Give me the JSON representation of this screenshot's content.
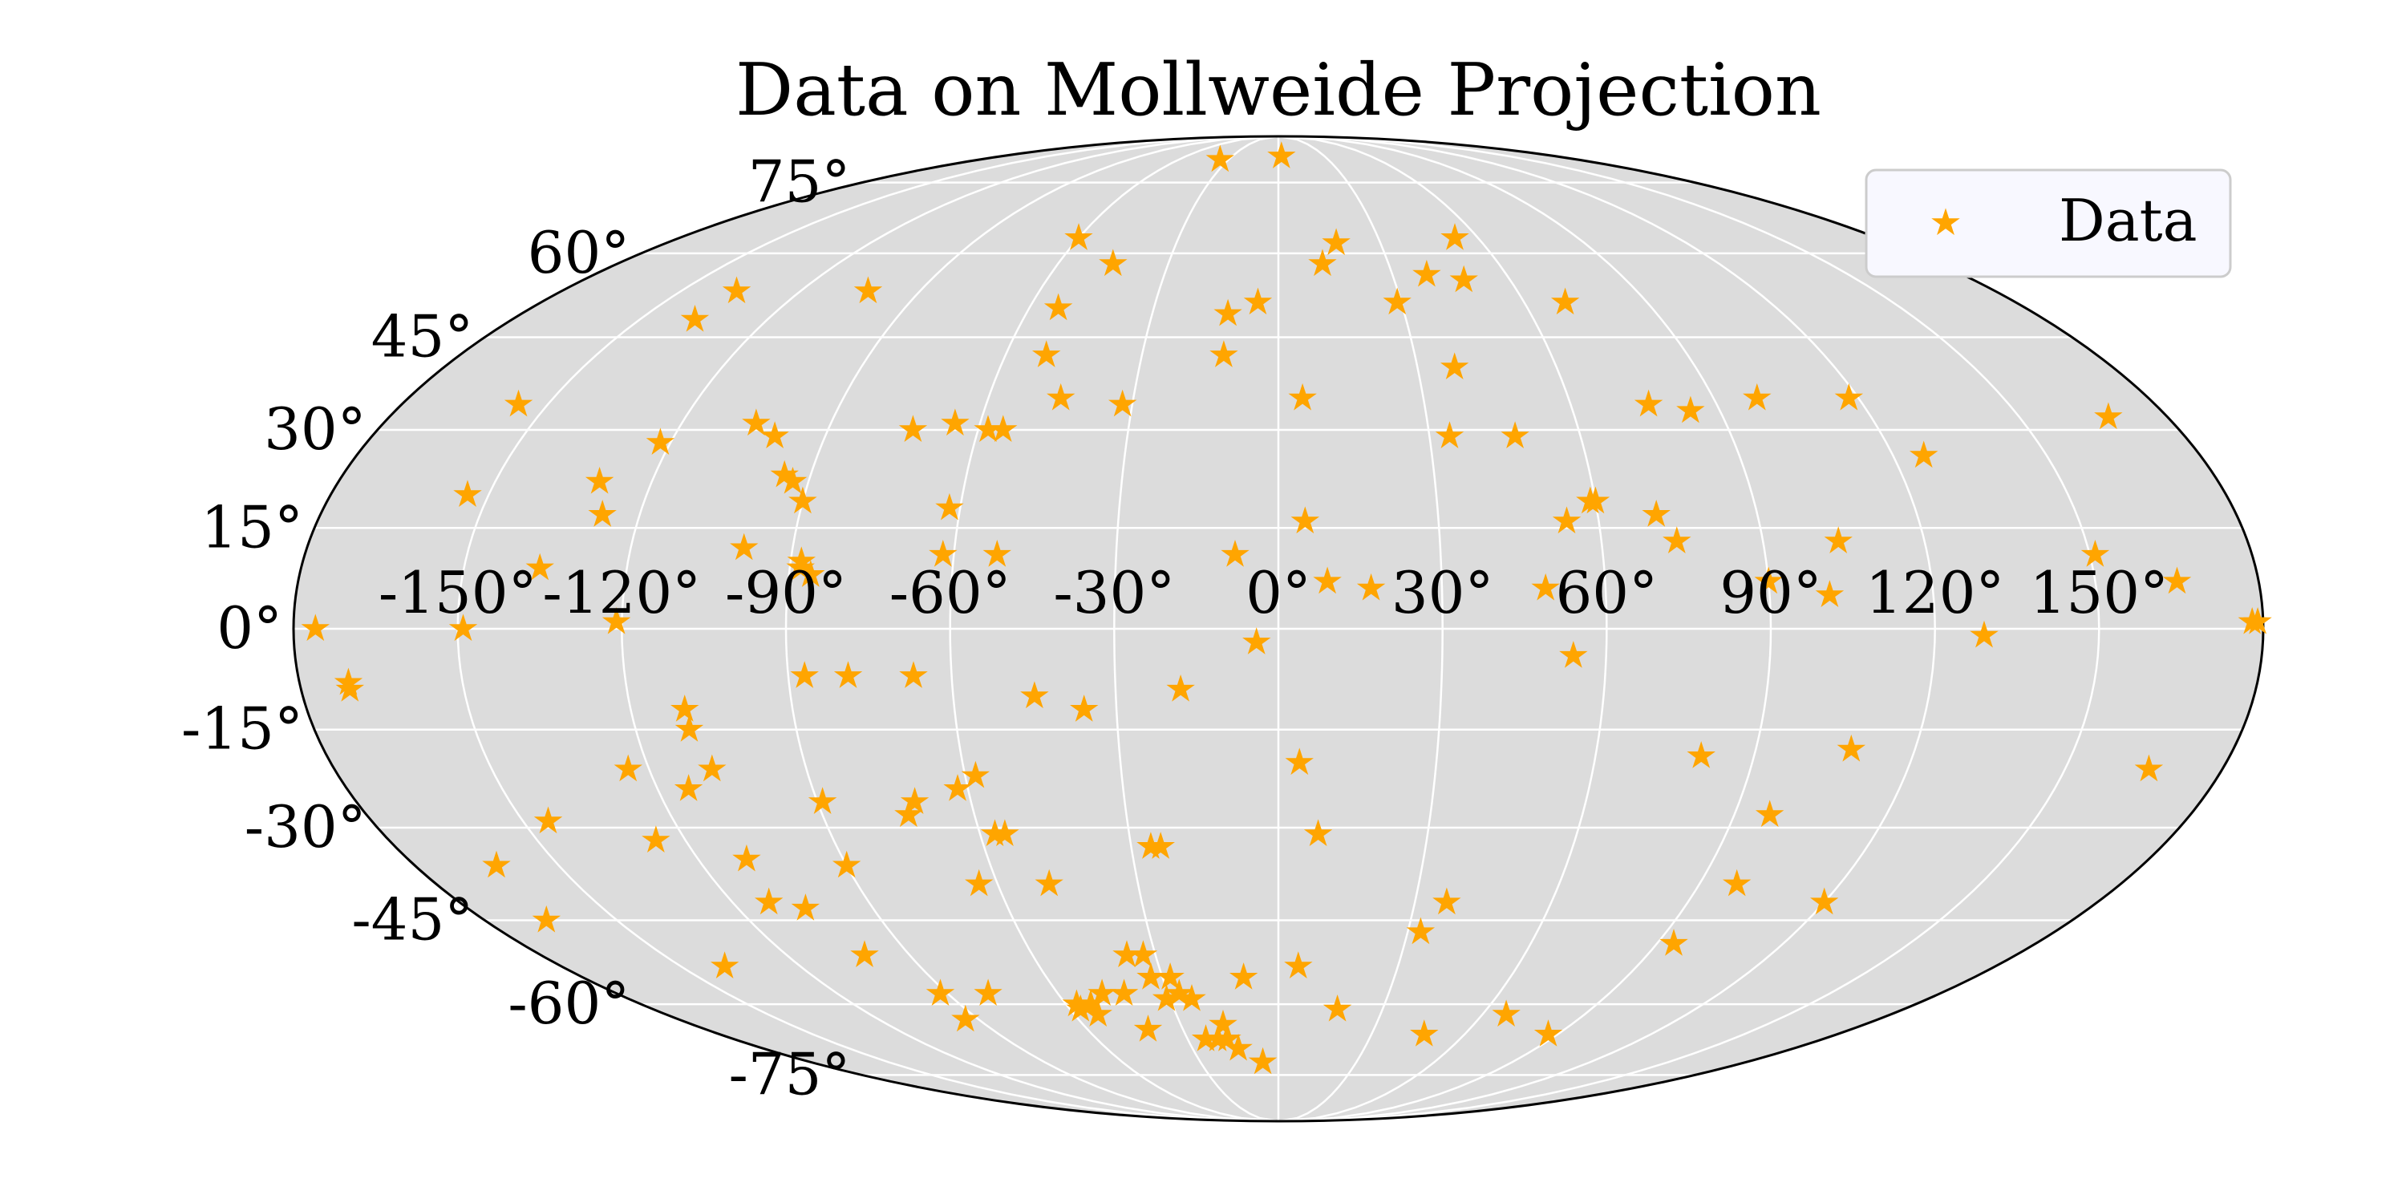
{
  "chart_data": {
    "type": "scatter",
    "projection": "mollweide",
    "title": "Data on Mollweide Projection",
    "grid": true,
    "background_color": "#dcdcdc",
    "grid_color": "#ffffff",
    "marker": "star",
    "legend_placement": "top-right",
    "lon_ticks": [
      -150,
      -120,
      -90,
      -60,
      -30,
      0,
      30,
      60,
      90,
      120,
      150
    ],
    "lon_tick_labels": [
      "-150°",
      "-120°",
      "-90°",
      "-60°",
      "-30°",
      "0°",
      "30°",
      "60°",
      "90°",
      "120°",
      "150°"
    ],
    "lat_ticks": [
      -75,
      -60,
      -45,
      -30,
      -15,
      0,
      15,
      30,
      45,
      60,
      75
    ],
    "lat_tick_labels": [
      "-75°",
      "-60°",
      "-45°",
      "-30°",
      "-15°",
      "0°",
      "15°",
      "30°",
      "45°",
      "60°",
      "75°"
    ],
    "series": [
      {
        "name": "Data",
        "color": "#ffa500",
        "points": [
          [
            -35,
            81
          ],
          [
            2,
            82
          ],
          [
            -60,
            63
          ],
          [
            17,
            62
          ],
          [
            -45,
            58
          ],
          [
            12,
            58
          ],
          [
            -136,
            53
          ],
          [
            -103,
            53
          ],
          [
            39,
            56
          ],
          [
            53,
            63
          ],
          [
            48,
            55
          ],
          [
            29,
            51
          ],
          [
            70,
            51
          ],
          [
            -137,
            48
          ],
          [
            -53,
            50
          ],
          [
            -12,
            49
          ],
          [
            -5,
            51
          ],
          [
            -51,
            42
          ],
          [
            -12,
            42
          ],
          [
            38,
            40
          ],
          [
            -45,
            35
          ],
          [
            5,
            35
          ],
          [
            -156,
            34
          ],
          [
            -73,
            30
          ],
          [
            -105,
            31
          ],
          [
            -65,
            31
          ],
          [
            -100,
            29
          ],
          [
            -122,
            28
          ],
          [
            -58,
            30
          ],
          [
            -55,
            30
          ],
          [
            -32,
            34
          ],
          [
            99,
            35
          ],
          [
            76,
            34
          ],
          [
            118,
            35
          ],
          [
            84,
            33
          ],
          [
            168,
            32
          ],
          [
            34,
            29
          ],
          [
            47,
            29
          ],
          [
            126,
            26
          ],
          [
            -130,
            22
          ],
          [
            -95,
            23
          ],
          [
            -93,
            22
          ],
          [
            -90,
            19
          ],
          [
            -154,
            20
          ],
          [
            -62,
            18
          ],
          [
            -127,
            17
          ],
          [
            5,
            16
          ],
          [
            54,
            16
          ],
          [
            59,
            19
          ],
          [
            60,
            19
          ],
          [
            71,
            17
          ],
          [
            -99,
            12
          ],
          [
            -88,
            10
          ],
          [
            -62,
            11
          ],
          [
            -88,
            9
          ],
          [
            -86,
            8
          ],
          [
            -52,
            11
          ],
          [
            -8,
            11
          ],
          [
            74,
            13
          ],
          [
            104,
            13
          ],
          [
            151,
            11
          ],
          [
            -136,
            9
          ],
          [
            9,
            7
          ],
          [
            17,
            6
          ],
          [
            49,
            6
          ],
          [
            90,
            7
          ],
          [
            101,
            5
          ],
          [
            165,
            7
          ],
          [
            -149,
            0
          ],
          [
            -121,
            1
          ],
          [
            -176,
            0
          ],
          [
            -4,
            -2
          ],
          [
            129,
            -1
          ],
          [
            178,
            1
          ],
          [
            179,
            1
          ],
          [
            54,
            -4
          ],
          [
            -171,
            -8
          ],
          [
            -171,
            -9
          ],
          [
            -87,
            -7
          ],
          [
            -79,
            -7
          ],
          [
            -67,
            -7
          ],
          [
            -45,
            -10
          ],
          [
            -36,
            -12
          ],
          [
            -18,
            -9
          ],
          [
            -110,
            -12
          ],
          [
            -110,
            -15
          ],
          [
            -124,
            -21
          ],
          [
            -108,
            -21
          ],
          [
            -114,
            -24
          ],
          [
            80,
            -19
          ],
          [
            108,
            -18
          ],
          [
            166,
            -21
          ],
          [
            -89,
            -26
          ],
          [
            -71,
            -26
          ],
          [
            -73,
            -28
          ],
          [
            -62,
            -24
          ],
          [
            -58,
            -22
          ],
          [
            -57,
            -31
          ],
          [
            -55,
            -31
          ],
          [
            -26,
            -33
          ],
          [
            -24,
            -33
          ],
          [
            4,
            -20
          ],
          [
            8,
            -31
          ],
          [
            -145,
            -29
          ],
          [
            -126,
            -32
          ],
          [
            -110,
            -35
          ],
          [
            -90,
            -36
          ],
          [
            -64,
            -39
          ],
          [
            -49,
            -39
          ],
          [
            97,
            -28
          ],
          [
            98,
            -39
          ],
          [
            120,
            -42
          ],
          [
            -163,
            -36
          ],
          [
            -112,
            -42
          ],
          [
            -105,
            -43
          ],
          [
            37,
            -42
          ],
          [
            33,
            -47
          ],
          [
            94,
            -49
          ],
          [
            -166,
            -45
          ],
          [
            -139,
            -53
          ],
          [
            -101,
            -51
          ],
          [
            -37,
            -51
          ],
          [
            -33,
            -51
          ],
          [
            -92,
            -58
          ],
          [
            -79,
            -58
          ],
          [
            -57,
            -60
          ],
          [
            -53,
            -60
          ],
          [
            -53,
            -62
          ],
          [
            -48,
            -58
          ],
          [
            -42,
            -58
          ],
          [
            -33,
            -55
          ],
          [
            -28,
            -55
          ],
          [
            -27,
            -58
          ],
          [
            -31,
            -59
          ],
          [
            -24,
            -59
          ],
          [
            -9,
            -55
          ],
          [
            5,
            -53
          ],
          [
            17,
            -61
          ],
          [
            -94,
            -63
          ],
          [
            -57,
            -61
          ],
          [
            -41,
            -65
          ],
          [
            -17,
            -64
          ],
          [
            -24,
            -67
          ],
          [
            -20,
            -67
          ],
          [
            -17,
            -67
          ],
          [
            -14,
            -69
          ],
          [
            -6,
            -72
          ],
          [
            47,
            -66
          ],
          [
            67,
            -62
          ],
          [
            87,
            -66
          ]
        ]
      }
    ]
  }
}
